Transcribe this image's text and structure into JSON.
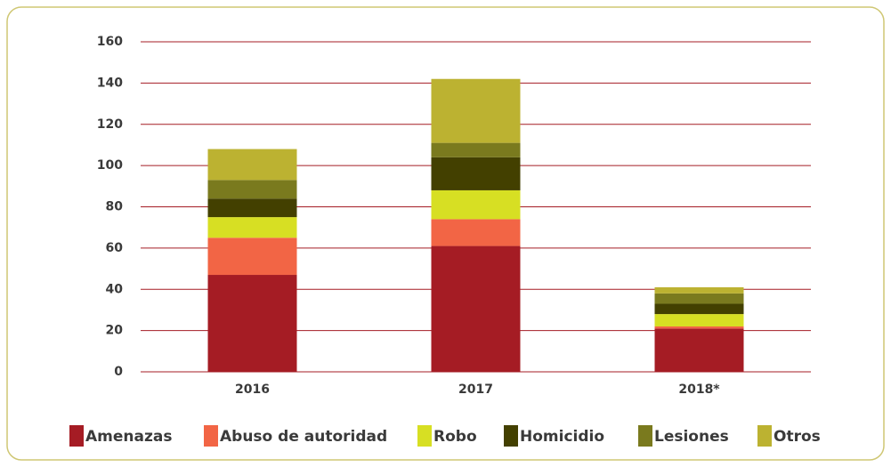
{
  "chart_data": {
    "type": "stacked_bar",
    "categories": [
      "2016",
      "2017",
      "2018*"
    ],
    "series": [
      {
        "name": "Amenazas",
        "color": "#a51c24",
        "values": [
          47,
          61,
          21
        ]
      },
      {
        "name": "Abuso de autoridad",
        "color": "#f26545",
        "values": [
          18,
          13,
          1
        ]
      },
      {
        "name": "Robo",
        "color": "#d7df23",
        "values": [
          10,
          14,
          6
        ]
      },
      {
        "name": "Homicidio",
        "color": "#434000",
        "values": [
          9,
          16,
          5
        ]
      },
      {
        "name": "Lesiones",
        "color": "#7a7a1e",
        "values": [
          9,
          7,
          5
        ]
      },
      {
        "name": "Otros",
        "color": "#bcb231",
        "values": [
          15,
          31,
          3
        ]
      }
    ],
    "ylim": [
      0,
      160
    ],
    "yticks": [
      0,
      20,
      40,
      60,
      80,
      100,
      120,
      140,
      160
    ],
    "grid": true,
    "grid_color": "#a51c24",
    "legend": "bottom"
  }
}
